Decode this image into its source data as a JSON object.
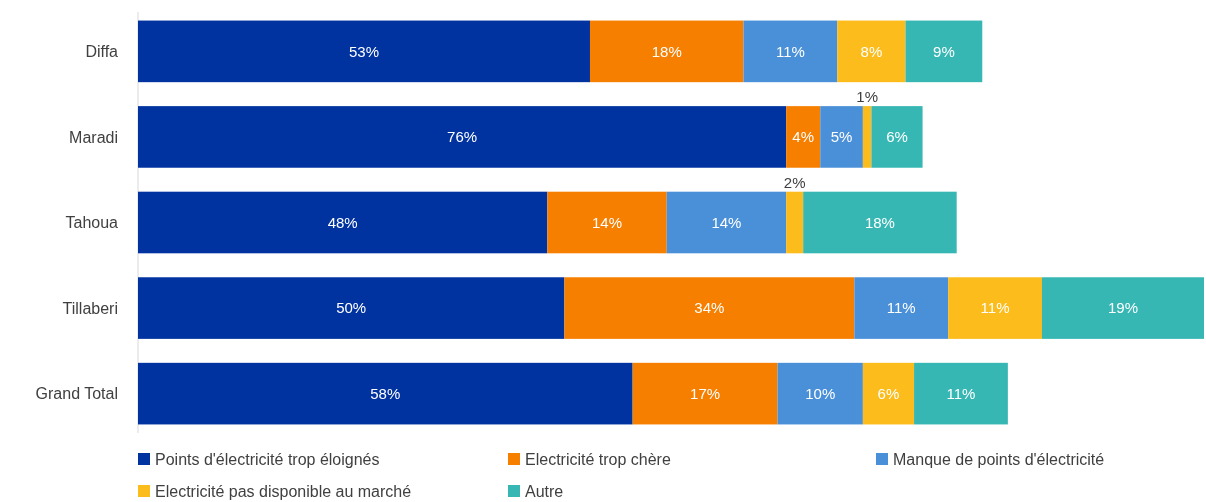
{
  "chart_data": {
    "type": "bar",
    "orientation": "horizontal",
    "stacked": true,
    "categories": [
      "Diffa",
      "Maradi",
      "Tahoua",
      "Tillaberi",
      "Grand Total"
    ],
    "legend": "bottom",
    "series": [
      {
        "name": "Points d'électricité trop éloignés",
        "color": "#0033a0",
        "values": [
          53,
          76,
          48,
          50,
          58
        ],
        "value_labels": [
          "53%",
          "76%",
          "48%",
          "50%",
          "58%"
        ]
      },
      {
        "name": "Electricité trop chère",
        "color": "#f77f00",
        "values": [
          18,
          4,
          14,
          34,
          17
        ],
        "value_labels": [
          "18%",
          "4%",
          "14%",
          "34%",
          "17%"
        ]
      },
      {
        "name": "Manque de points d'électricité",
        "color": "#4a90d9",
        "values": [
          11,
          5,
          14,
          11,
          10
        ],
        "value_labels": [
          "11%",
          "5%",
          "14%",
          "11%",
          "10%"
        ]
      },
      {
        "name": "Electricité pas disponible au marché",
        "color": "#fbbc1c",
        "values": [
          8,
          1,
          2,
          11,
          6
        ],
        "value_labels": [
          "8%",
          "1%",
          "2%",
          "11%",
          "6%"
        ]
      },
      {
        "name": "Autre",
        "color": "#36b7b4",
        "values": [
          9,
          6,
          18,
          19,
          11
        ],
        "value_labels": [
          "9%",
          "6%",
          "18%",
          "19%",
          "11%"
        ]
      }
    ]
  }
}
